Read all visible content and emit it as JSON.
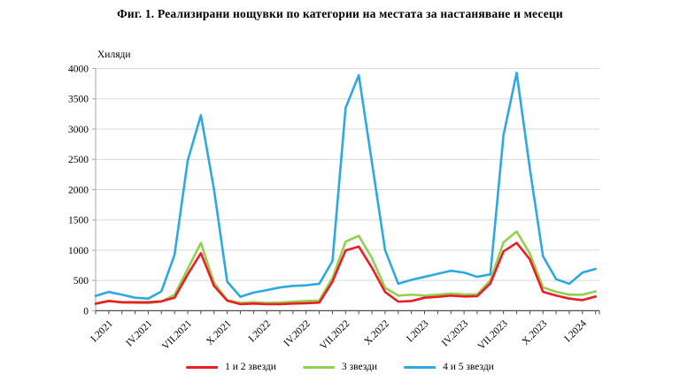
{
  "figure": {
    "title": "Фиг. 1. Реализирани нощувки по категории на местата за настаняване и месеци",
    "axis_unit_label": "Хиляди"
  },
  "legend": {
    "position": "bottom-center",
    "items": [
      {
        "label": "1 и 2 звезди",
        "color": "#ee1c25"
      },
      {
        "label": "3 звезди",
        "color": "#92d050"
      },
      {
        "label": "4 и 5 звезди",
        "color": "#2ea9e0"
      }
    ]
  },
  "chart_data": {
    "type": "line",
    "title": "Фиг. 1. Реализирани нощувки по категории на местата за настаняване и месеци",
    "xlabel": "",
    "ylabel": "Хиляди",
    "ylim": [
      0,
      4000
    ],
    "ytick_step": 500,
    "grid": true,
    "legend_position": "bottom",
    "months": [
      "XII.2020",
      "I.2021",
      "II.2021",
      "III.2021",
      "IV.2021",
      "V.2021",
      "VI.2021",
      "VII.2021",
      "VIII.2021",
      "IX.2021",
      "X.2021",
      "XI.2021",
      "XII.2021",
      "I.2022",
      "II.2022",
      "III.2022",
      "IV.2022",
      "V.2022",
      "VI.2022",
      "VII.2022",
      "VIII.2022",
      "IX.2022",
      "X.2022",
      "XI.2022",
      "XII.2022",
      "I.2023",
      "II.2023",
      "III.2023",
      "IV.2023",
      "V.2023",
      "VI.2023",
      "VII.2023",
      "VIII.2023",
      "IX.2023",
      "X.2023",
      "XI.2023",
      "XII.2023",
      "I.2024",
      "II.2024"
    ],
    "x_axis_labels_shown": [
      "I.2021",
      "IV.2021",
      "VII.2021",
      "X.2021",
      "I.2022",
      "IV.2022",
      "VII.2022",
      "X.2022",
      "I.2023",
      "IV.2023",
      "VII.2023",
      "X.2023",
      "I.2024"
    ],
    "labeled_month_indices": [
      1,
      4,
      7,
      10,
      13,
      16,
      19,
      22,
      25,
      28,
      31,
      34,
      37
    ],
    "series": [
      {
        "name": "1 и 2 звезди",
        "color": "#ee1c25",
        "values": [
          115,
          160,
          140,
          140,
          140,
          155,
          215,
          600,
          950,
          410,
          167,
          108,
          118,
          108,
          108,
          118,
          124,
          134,
          480,
          995,
          1060,
          710,
          310,
          150,
          160,
          215,
          230,
          250,
          235,
          240,
          450,
          980,
          1120,
          850,
          313,
          250,
          200,
          175,
          235
        ]
      },
      {
        "name": "3 звезди",
        "color": "#92d050",
        "values": [
          120,
          165,
          135,
          130,
          125,
          150,
          265,
          690,
          1120,
          460,
          175,
          130,
          140,
          130,
          135,
          150,
          160,
          170,
          540,
          1140,
          1237,
          870,
          380,
          250,
          265,
          250,
          265,
          285,
          270,
          270,
          500,
          1130,
          1310,
          945,
          386,
          313,
          264,
          264,
          320
        ]
      },
      {
        "name": "4 и 5 звезди",
        "color": "#2ea9e0",
        "values": [
          245,
          310,
          265,
          215,
          200,
          320,
          925,
          2480,
          3230,
          2000,
          480,
          230,
          300,
          340,
          385,
          410,
          420,
          445,
          820,
          3350,
          3890,
          2450,
          1000,
          445,
          510,
          560,
          610,
          660,
          630,
          560,
          600,
          2900,
          3930,
          2350,
          900,
          520,
          445,
          630,
          690
        ]
      }
    ],
    "style": {
      "gridline_color": "#d9d9d9",
      "x_axis_color": "#4d4d4d",
      "y_axis_color": "#b3b3b3",
      "tick_color": "#4d4d4d",
      "label_color": "#000000",
      "line_width": 2.6
    }
  }
}
